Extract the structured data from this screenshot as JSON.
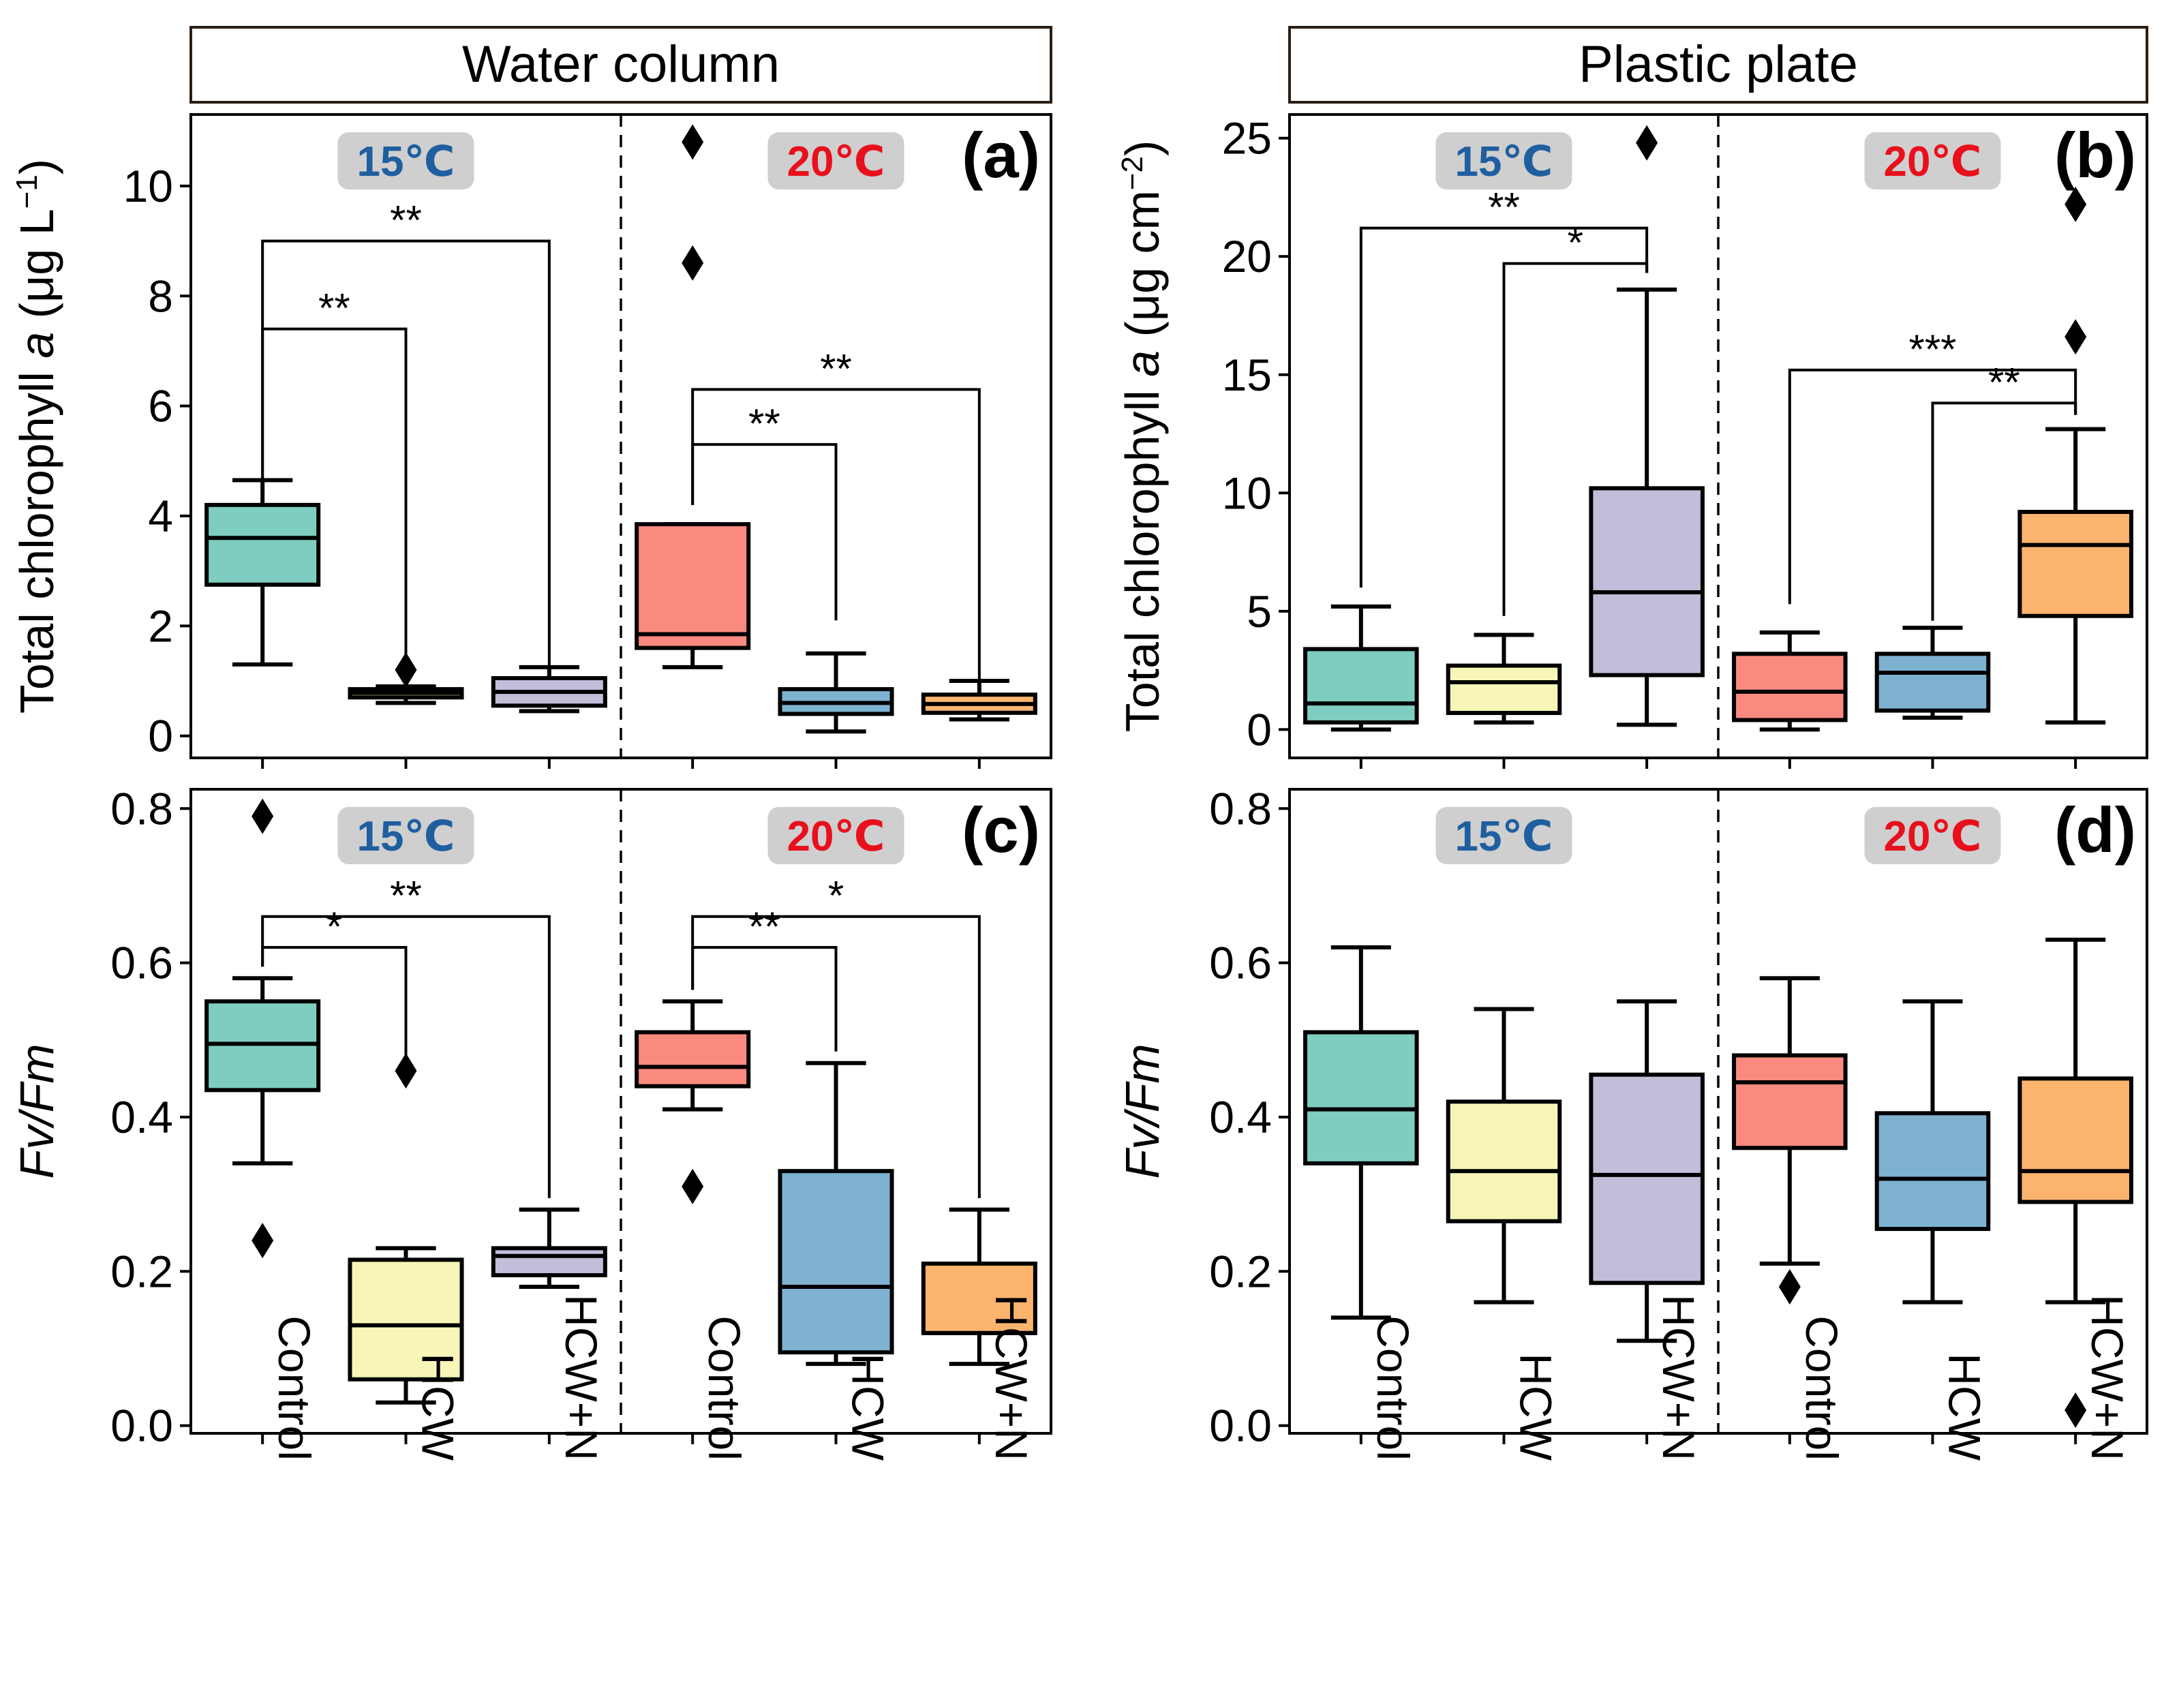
{
  "strips": [
    "Water column",
    "Plastic plate"
  ],
  "categories": [
    "Control",
    "HCW",
    "HCW+N",
    "Control",
    "HCW",
    "HCW+N"
  ],
  "temperatures": [
    {
      "label": "15℃",
      "color": "#1f5fa0"
    },
    {
      "label": "20℃",
      "color": "#e8101c"
    }
  ],
  "colors": {
    "control15": "#7ecdc0",
    "hcw15": "#f7f6b8",
    "hcwn15": "#c3bdd9",
    "control20": "#fa8a80",
    "hcw20": "#7fb2d1",
    "hcwn20": "#fbb46e"
  },
  "chart_data": [
    {
      "panel": "(a)",
      "type": "box",
      "ylabel_parts": [
        "Total chlorophyll ",
        "a",
        " (μg L",
        "−1",
        ")"
      ],
      "ylim": [
        -0.4,
        11.3
      ],
      "yticks": [
        0,
        2,
        4,
        6,
        8,
        10
      ],
      "ytick_labels": [
        "0",
        "2",
        "4",
        "6",
        "8",
        "10"
      ],
      "boxes": [
        {
          "group": "Control",
          "temp": "15℃",
          "color": "control15",
          "whislo": 1.3,
          "q1": 2.75,
          "med": 3.6,
          "q3": 4.2,
          "whishi": 4.65,
          "fliers": []
        },
        {
          "group": "HCW",
          "temp": "15℃",
          "color": "hcw15",
          "whislo": 0.6,
          "q1": 0.7,
          "med": 0.78,
          "q3": 0.85,
          "whishi": 0.9,
          "fliers": [
            1.2
          ]
        },
        {
          "group": "HCW+N",
          "temp": "15℃",
          "color": "hcwn15",
          "whislo": 0.45,
          "q1": 0.55,
          "med": 0.8,
          "q3": 1.05,
          "whishi": 1.25,
          "fliers": []
        },
        {
          "group": "Control",
          "temp": "20℃",
          "color": "control20",
          "whislo": 1.25,
          "q1": 1.6,
          "med": 1.85,
          "q3": 3.85,
          "whishi": 3.85,
          "fliers": [
            8.6,
            10.8
          ]
        },
        {
          "group": "HCW",
          "temp": "20℃",
          "color": "hcw20",
          "whislo": 0.08,
          "q1": 0.4,
          "med": 0.6,
          "q3": 0.85,
          "whishi": 1.5,
          "fliers": []
        },
        {
          "group": "HCW+N",
          "temp": "20℃",
          "color": "hcwn20",
          "whislo": 0.3,
          "q1": 0.42,
          "med": 0.58,
          "q3": 0.75,
          "whishi": 1.0,
          "fliers": []
        }
      ],
      "significance": [
        {
          "from": 0,
          "to": 2,
          "level": 9.0,
          "from_end": 4.65,
          "to_end": 1.25,
          "label": "**"
        },
        {
          "from": 0,
          "to": 1,
          "level": 7.4,
          "from_end": 4.65,
          "to_end": 1.2,
          "label": "**"
        },
        {
          "from": 3,
          "to": 5,
          "level": 6.3,
          "from_end": 4.2,
          "to_end": 1.0,
          "label": "**"
        },
        {
          "from": 3,
          "to": 4,
          "level": 5.3,
          "from_end": 4.2,
          "to_end": 2.1,
          "label": "**"
        }
      ]
    },
    {
      "panel": "(b)",
      "type": "box",
      "ylabel_parts": [
        "Total chlorophyll ",
        "a",
        " (μg cm",
        "−2",
        ")"
      ],
      "ylim": [
        -1.2,
        26.0
      ],
      "yticks": [
        0,
        5,
        10,
        15,
        20,
        25
      ],
      "ytick_labels": [
        "0",
        "5",
        "10",
        "15",
        "20",
        "25"
      ],
      "boxes": [
        {
          "group": "Control",
          "temp": "15℃",
          "color": "control15",
          "whislo": 0.0,
          "q1": 0.3,
          "med": 1.1,
          "q3": 3.4,
          "whishi": 5.2,
          "fliers": []
        },
        {
          "group": "HCW",
          "temp": "15℃",
          "color": "hcw15",
          "whislo": 0.3,
          "q1": 0.7,
          "med": 2.0,
          "q3": 2.7,
          "whishi": 4.0,
          "fliers": []
        },
        {
          "group": "HCW+N",
          "temp": "15℃",
          "color": "hcwn15",
          "whislo": 0.2,
          "q1": 2.3,
          "med": 5.8,
          "q3": 10.2,
          "whishi": 18.6,
          "fliers": [
            24.8
          ]
        },
        {
          "group": "Control",
          "temp": "20℃",
          "color": "control20",
          "whislo": 0.0,
          "q1": 0.4,
          "med": 1.6,
          "q3": 3.2,
          "whishi": 4.1,
          "fliers": []
        },
        {
          "group": "HCW",
          "temp": "20℃",
          "color": "hcw20",
          "whislo": 0.5,
          "q1": 0.8,
          "med": 2.4,
          "q3": 3.2,
          "whishi": 4.3,
          "fliers": []
        },
        {
          "group": "HCW+N",
          "temp": "20℃",
          "color": "hcwn20",
          "whislo": 0.3,
          "q1": 4.8,
          "med": 7.8,
          "q3": 9.2,
          "whishi": 12.7,
          "fliers": [
            16.6,
            22.2
          ]
        }
      ],
      "significance": [
        {
          "from": 0,
          "to": 2,
          "level": 21.2,
          "from_end": 6.0,
          "to_end": 19.3,
          "label": "**"
        },
        {
          "from": 1,
          "to": 2,
          "level": 19.7,
          "from_end": 4.8,
          "to_end": 19.3,
          "label": "*"
        },
        {
          "from": 3,
          "to": 5,
          "level": 15.2,
          "from_end": 5.3,
          "to_end": 13.3,
          "label": "***"
        },
        {
          "from": 4,
          "to": 5,
          "level": 13.8,
          "from_end": 4.6,
          "to_end": 13.3,
          "label": "**"
        }
      ]
    },
    {
      "panel": "(c)",
      "type": "box",
      "ylabel_parts": [
        "Fv/Fm"
      ],
      "ylim": [
        -0.01,
        0.825
      ],
      "yticks": [
        0.0,
        0.2,
        0.4,
        0.6,
        0.8
      ],
      "ytick_labels": [
        "0.0",
        "0.2",
        "0.4",
        "0.6",
        "0.8"
      ],
      "boxes": [
        {
          "group": "Control",
          "temp": "15℃",
          "color": "control15",
          "whislo": 0.34,
          "q1": 0.435,
          "med": 0.495,
          "q3": 0.55,
          "whishi": 0.58,
          "fliers": [
            0.24,
            0.79
          ]
        },
        {
          "group": "HCW",
          "temp": "15℃",
          "color": "hcw15",
          "whislo": 0.03,
          "q1": 0.06,
          "med": 0.13,
          "q3": 0.215,
          "whishi": 0.23,
          "fliers": [
            0.46
          ]
        },
        {
          "group": "HCW+N",
          "temp": "15℃",
          "color": "hcwn15",
          "whislo": 0.18,
          "q1": 0.195,
          "med": 0.22,
          "q3": 0.23,
          "whishi": 0.28,
          "fliers": []
        },
        {
          "group": "Control",
          "temp": "20℃",
          "color": "control20",
          "whislo": 0.41,
          "q1": 0.44,
          "med": 0.465,
          "q3": 0.51,
          "whishi": 0.55,
          "fliers": [
            0.31
          ]
        },
        {
          "group": "HCW",
          "temp": "20℃",
          "color": "hcw20",
          "whislo": 0.08,
          "q1": 0.095,
          "med": 0.18,
          "q3": 0.33,
          "whishi": 0.47,
          "fliers": []
        },
        {
          "group": "HCW+N",
          "temp": "20℃",
          "color": "hcwn20",
          "whislo": 0.08,
          "q1": 0.12,
          "med": 0.12,
          "q3": 0.21,
          "whishi": 0.28,
          "fliers": []
        }
      ],
      "significance": [
        {
          "from": 0,
          "to": 2,
          "level": 0.66,
          "from_end": 0.595,
          "to_end": 0.295,
          "label": "**"
        },
        {
          "from": 0,
          "to": 1,
          "level": 0.62,
          "from_end": 0.595,
          "to_end": 0.475,
          "label": "*"
        },
        {
          "from": 3,
          "to": 5,
          "level": 0.66,
          "from_end": 0.565,
          "to_end": 0.295,
          "label": "*"
        },
        {
          "from": 3,
          "to": 4,
          "level": 0.62,
          "from_end": 0.565,
          "to_end": 0.485,
          "label": "**"
        }
      ]
    },
    {
      "panel": "(d)",
      "type": "box",
      "ylabel_parts": [
        "Fv/Fm"
      ],
      "ylim": [
        -0.01,
        0.825
      ],
      "yticks": [
        0.0,
        0.2,
        0.4,
        0.6,
        0.8
      ],
      "ytick_labels": [
        "0.0",
        "0.2",
        "0.4",
        "0.6",
        "0.8"
      ],
      "boxes": [
        {
          "group": "Control",
          "temp": "15℃",
          "color": "control15",
          "whislo": 0.14,
          "q1": 0.34,
          "med": 0.41,
          "q3": 0.51,
          "whishi": 0.62,
          "fliers": []
        },
        {
          "group": "HCW",
          "temp": "15℃",
          "color": "hcw15",
          "whislo": 0.16,
          "q1": 0.265,
          "med": 0.33,
          "q3": 0.42,
          "whishi": 0.54,
          "fliers": []
        },
        {
          "group": "HCW+N",
          "temp": "15℃",
          "color": "hcwn15",
          "whislo": 0.11,
          "q1": 0.185,
          "med": 0.325,
          "q3": 0.455,
          "whishi": 0.55,
          "fliers": []
        },
        {
          "group": "Control",
          "temp": "20℃",
          "color": "control20",
          "whislo": 0.21,
          "q1": 0.36,
          "med": 0.445,
          "q3": 0.48,
          "whishi": 0.58,
          "fliers": [
            0.18
          ]
        },
        {
          "group": "HCW",
          "temp": "20℃",
          "color": "hcw20",
          "whislo": 0.16,
          "q1": 0.255,
          "med": 0.32,
          "q3": 0.405,
          "whishi": 0.55,
          "fliers": []
        },
        {
          "group": "HCW+N",
          "temp": "20℃",
          "color": "hcwn20",
          "whislo": 0.16,
          "q1": 0.29,
          "med": 0.33,
          "q3": 0.45,
          "whishi": 0.63,
          "fliers": [
            0.02
          ]
        }
      ],
      "significance": []
    }
  ]
}
